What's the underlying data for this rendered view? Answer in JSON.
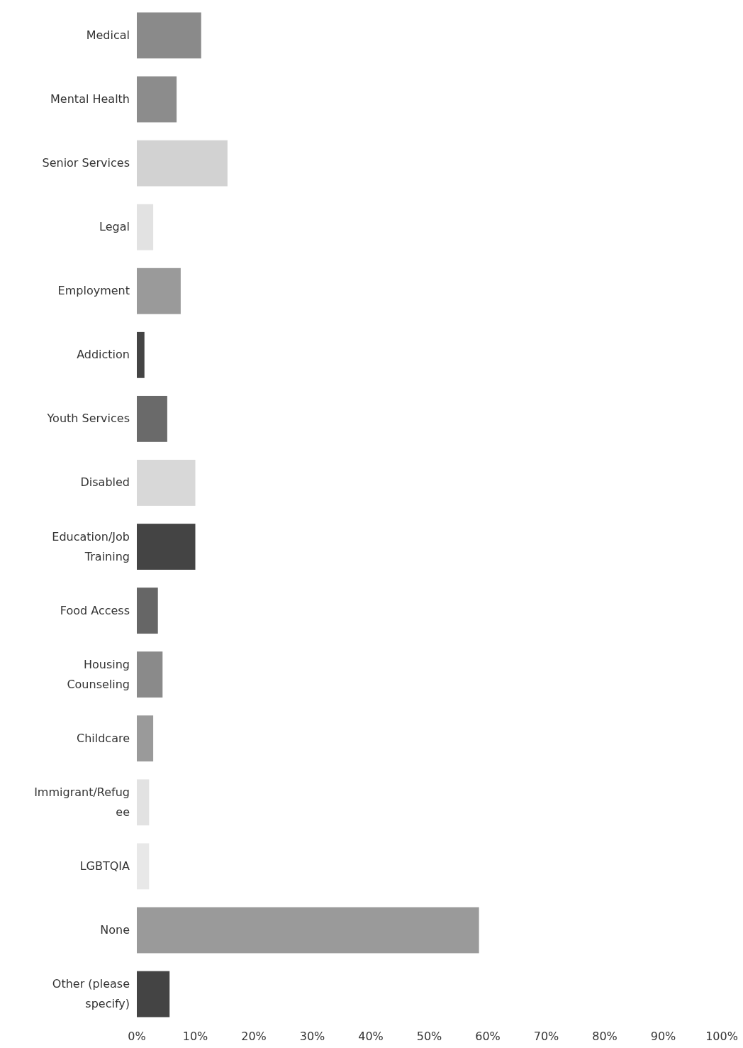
{
  "chart_data": {
    "type": "bar",
    "orientation": "horizontal",
    "categories": [
      "Medical",
      "Mental Health",
      "Senior Services",
      "Legal",
      "Employment",
      "Addiction",
      "Youth Services",
      "Disabled",
      "Education/Job Training",
      "Food Access",
      "Housing Counseling",
      "Childcare",
      "Immigrant/Refugee",
      "LGBTQIA",
      "None",
      "Other (please specify)"
    ],
    "values": [
      11,
      6.8,
      15.5,
      2.8,
      7.5,
      1.3,
      5.2,
      10,
      10,
      3.6,
      4.4,
      2.8,
      2.1,
      2.1,
      58.5,
      5.6
    ],
    "colors": [
      "#8a8a8a",
      "#8c8c8c",
      "#d2d2d2",
      "#e2e2e2",
      "#9a9a9a",
      "#444444",
      "#6a6a6a",
      "#d8d8d8",
      "#444444",
      "#666666",
      "#8a8a8a",
      "#9a9a9a",
      "#e2e2e2",
      "#e8e8e8",
      "#9a9a9a",
      "#444444"
    ],
    "xlim": [
      0,
      100
    ],
    "xticks": [
      {
        "value": 0,
        "label": "0%"
      },
      {
        "value": 10,
        "label": "10%"
      },
      {
        "value": 20,
        "label": "20%"
      },
      {
        "value": 30,
        "label": "30%"
      },
      {
        "value": 40,
        "label": "40%"
      },
      {
        "value": 50,
        "label": "50%"
      },
      {
        "value": 60,
        "label": "60%"
      },
      {
        "value": 70,
        "label": "70%"
      },
      {
        "value": 80,
        "label": "80%"
      },
      {
        "value": 90,
        "label": "90%"
      },
      {
        "value": 100,
        "label": "100%"
      }
    ],
    "grid": false
  }
}
